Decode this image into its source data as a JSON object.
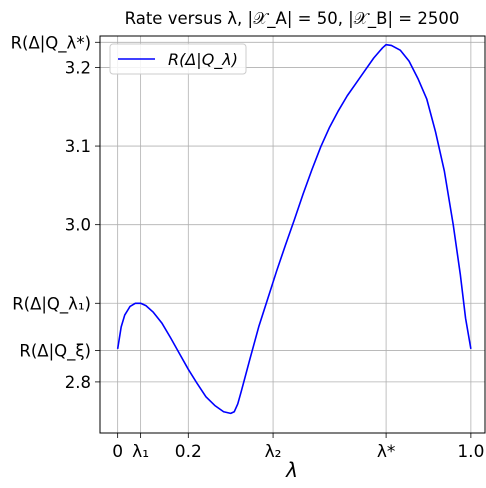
{
  "chart_data": {
    "type": "line",
    "title": "Rate versus λ, |𝒳_A| = 50, |𝒳_B| = 2500",
    "xlabel": "λ",
    "ylabel": "",
    "xlim": [
      -0.05,
      1.04
    ],
    "ylim": [
      2.735,
      3.24
    ],
    "grid": true,
    "legend_position": "upper-left",
    "x_ticks": [
      {
        "value": 0.0,
        "label": "0"
      },
      {
        "value": 0.065,
        "label": "λ₁"
      },
      {
        "value": 0.2,
        "label": "0.2"
      },
      {
        "value": 0.44,
        "label": "λ₂"
      },
      {
        "value": 0.76,
        "label": "λ*"
      },
      {
        "value": 1.0,
        "label": "1.0"
      }
    ],
    "y_ticks": [
      {
        "value": 2.8,
        "label": "2.8"
      },
      {
        "value": 2.84,
        "label": "R(Δ|Q_ξ)"
      },
      {
        "value": 2.9,
        "label": "R(Δ|Q_λ₁)"
      },
      {
        "value": 3.0,
        "label": "3.0"
      },
      {
        "value": 3.1,
        "label": "3.1"
      },
      {
        "value": 3.2,
        "label": "3.2"
      },
      {
        "value": 3.232,
        "label": "R(Δ|Q_λ*)"
      }
    ],
    "series": [
      {
        "name": "R(Δ|Q_λ)",
        "color": "#0000ff",
        "x": [
          0.0,
          0.01,
          0.02,
          0.035,
          0.05,
          0.065,
          0.08,
          0.1,
          0.125,
          0.15,
          0.175,
          0.2,
          0.225,
          0.25,
          0.275,
          0.3,
          0.32,
          0.33,
          0.34,
          0.35,
          0.375,
          0.4,
          0.425,
          0.45,
          0.475,
          0.5,
          0.525,
          0.55,
          0.575,
          0.6,
          0.625,
          0.65,
          0.675,
          0.7,
          0.725,
          0.75,
          0.76,
          0.775,
          0.8,
          0.825,
          0.85,
          0.875,
          0.9,
          0.925,
          0.95,
          0.97,
          0.985,
          1.0
        ],
        "y": [
          2.842,
          2.87,
          2.885,
          2.896,
          2.9,
          2.9,
          2.897,
          2.889,
          2.875,
          2.856,
          2.836,
          2.816,
          2.798,
          2.781,
          2.77,
          2.762,
          2.76,
          2.762,
          2.772,
          2.788,
          2.83,
          2.871,
          2.906,
          2.941,
          2.974,
          3.006,
          3.039,
          3.07,
          3.099,
          3.124,
          3.145,
          3.164,
          3.18,
          3.196,
          3.212,
          3.225,
          3.229,
          3.228,
          3.222,
          3.208,
          3.186,
          3.16,
          3.118,
          3.068,
          3.0,
          2.937,
          2.881,
          2.842
        ]
      }
    ]
  }
}
